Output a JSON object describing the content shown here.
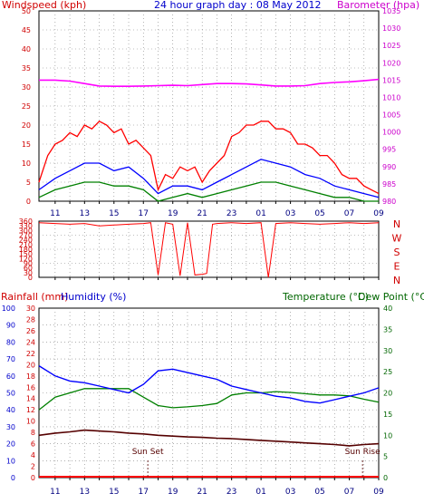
{
  "header": {
    "wind_title": "Windspeed (kph)",
    "center_title": "24 hour graph day : 08 May 2012",
    "baro_title": "Barometer (hpa)",
    "rain_title": "Rainfall (mm)",
    "hum_title": "Humidity (%)",
    "temp_title": "Temperature (°C)",
    "dew_title": "Dew Point (°C)"
  },
  "colors": {
    "wind_gust": "#ff0000",
    "wind_avg": "#0000ff",
    "wind_low": "#008000",
    "barometer": "#ff00ff",
    "wind_dir": "#ff0000",
    "humidity": "#0000ff",
    "temperature": "#008000",
    "dew_point": "#550000",
    "rain": "#ff0000",
    "axis_red": "#d00000",
    "axis_magenta": "#cc00cc",
    "axis_blue": "#0000cc",
    "axis_green": "#006600",
    "grid": "#808080"
  },
  "x_ticks": [
    "11",
    "13",
    "15",
    "17",
    "19",
    "21",
    "23",
    "01",
    "03",
    "05",
    "07",
    "09"
  ],
  "x_minor_ticks": [
    "11",
    "12",
    "13",
    "14",
    "15",
    "16",
    "17",
    "18",
    "19",
    "20",
    "21",
    "22",
    "23",
    "00",
    "01",
    "02",
    "03",
    "04",
    "05",
    "06",
    "07",
    "08",
    "09"
  ],
  "compass": [
    "N",
    "W",
    "S",
    "E",
    "N"
  ],
  "markers": {
    "sunset_label": "Sun Set",
    "sunrise_label": "Sun Rise",
    "sunset_hour": 17.3,
    "sunrise_hour": 31.9
  },
  "chart_data": [
    {
      "type": "line",
      "panel": "wind-barometer",
      "x_range_hours": [
        9.9,
        33.0
      ],
      "left_axis": {
        "label": "Windspeed (kph)",
        "range": [
          0,
          50
        ],
        "ticks": [
          0,
          5,
          10,
          15,
          20,
          25,
          30,
          35,
          40,
          45,
          50
        ]
      },
      "right_axis": {
        "label": "Barometer (hpa)",
        "range": [
          980,
          1035
        ],
        "ticks": [
          980,
          985,
          990,
          995,
          1000,
          1005,
          1010,
          1015,
          1020,
          1025,
          1030,
          1035
        ]
      },
      "series": [
        {
          "name": "Barometer (hpa)",
          "axis": "right",
          "x": [
            9.9,
            11,
            12,
            13,
            14,
            15,
            16,
            17,
            18,
            19,
            20,
            21,
            22,
            23,
            24,
            25,
            26,
            27,
            28,
            29,
            30,
            31,
            32,
            33
          ],
          "y": [
            1015.0,
            1015.0,
            1014.7,
            1014.0,
            1013.3,
            1013.2,
            1013.2,
            1013.3,
            1013.4,
            1013.5,
            1013.4,
            1013.7,
            1014.0,
            1014.0,
            1013.9,
            1013.6,
            1013.3,
            1013.3,
            1013.4,
            1014.0,
            1014.3,
            1014.5,
            1014.8,
            1015.2
          ]
        },
        {
          "name": "Wind gust (kph)",
          "axis": "left",
          "x": [
            9.9,
            10.5,
            11,
            11.5,
            12,
            12.5,
            13,
            13.5,
            14,
            14.5,
            15,
            15.5,
            16,
            16.5,
            17,
            17.5,
            18,
            18.5,
            19,
            19.5,
            20,
            20.5,
            21,
            21.5,
            22,
            22.5,
            23,
            23.5,
            24,
            24.5,
            25,
            25.5,
            26,
            26.5,
            27,
            27.5,
            28,
            28.5,
            29,
            29.5,
            30,
            30.5,
            31,
            31.5,
            32,
            32.5,
            33
          ],
          "y": [
            5,
            12,
            15,
            16,
            18,
            17,
            20,
            19,
            21,
            20,
            18,
            19,
            15,
            16,
            14,
            12,
            3,
            7,
            6,
            9,
            8,
            9,
            5,
            8,
            10,
            12,
            17,
            18,
            20,
            20,
            21,
            21,
            19,
            19,
            18,
            15,
            15,
            14,
            12,
            12,
            10,
            7,
            6,
            6,
            4,
            3,
            2
          ]
        },
        {
          "name": "Wind average (kph)",
          "axis": "left",
          "x": [
            9.9,
            11,
            12,
            13,
            14,
            15,
            16,
            17,
            18,
            19,
            20,
            21,
            22,
            23,
            24,
            25,
            26,
            27,
            28,
            29,
            30,
            31,
            32,
            33
          ],
          "y": [
            3,
            6,
            8,
            10,
            10,
            8,
            9,
            6,
            2,
            4,
            4,
            3,
            5,
            7,
            9,
            11,
            10,
            9,
            7,
            6,
            4,
            3,
            2,
            1
          ]
        },
        {
          "name": "Wind lull (kph)",
          "axis": "left",
          "x": [
            9.9,
            11,
            12,
            13,
            14,
            15,
            16,
            17,
            18,
            19,
            20,
            21,
            22,
            23,
            24,
            25,
            26,
            27,
            28,
            29,
            30,
            31,
            32,
            33
          ],
          "y": [
            1,
            3,
            4,
            5,
            5,
            4,
            4,
            3,
            0,
            1,
            2,
            1,
            2,
            3,
            4,
            5,
            5,
            4,
            3,
            2,
            1,
            1,
            0,
            0
          ]
        }
      ]
    },
    {
      "type": "line",
      "panel": "wind-direction",
      "x_range_hours": [
        9.9,
        33.0
      ],
      "left_axis": {
        "range": [
          0,
          360
        ],
        "ticks": [
          0,
          30,
          60,
          90,
          120,
          150,
          180,
          210,
          240,
          270,
          300,
          330,
          360
        ]
      },
      "series": [
        {
          "name": "Wind direction (°)",
          "axis": "left",
          "x": [
            9.9,
            11,
            12,
            13,
            14,
            15,
            16,
            17,
            17.5,
            18,
            18.5,
            19,
            19.5,
            20,
            20.5,
            21,
            21.3,
            21.7,
            22,
            23,
            24,
            25,
            25.5,
            26,
            27,
            28,
            29,
            30,
            31,
            32,
            33
          ],
          "y": [
            350,
            345,
            340,
            345,
            330,
            335,
            340,
            345,
            350,
            15,
            350,
            340,
            10,
            350,
            15,
            20,
            25,
            340,
            345,
            350,
            345,
            350,
            0,
            345,
            350,
            345,
            340,
            345,
            350,
            345,
            350
          ]
        }
      ]
    },
    {
      "type": "line",
      "panel": "humidity-temperature",
      "x_range_hours": [
        9.9,
        33.0
      ],
      "left_axis": {
        "label": "Humidity (%)",
        "range": [
          0,
          100
        ],
        "ticks": [
          0,
          10,
          20,
          30,
          40,
          50,
          60,
          70,
          80,
          90,
          100
        ]
      },
      "rain_axis": {
        "label": "Rainfall (mm)",
        "range": [
          0,
          30
        ],
        "ticks": [
          0,
          2,
          4,
          6,
          8,
          10,
          12,
          14,
          16,
          18,
          20,
          22,
          24,
          26,
          28,
          30
        ]
      },
      "right_axis": {
        "label": "Temperature (°C)",
        "range": [
          0,
          40
        ],
        "ticks": [
          0,
          5,
          10,
          15,
          20,
          25,
          30,
          35,
          40
        ]
      },
      "series": [
        {
          "name": "Humidity (%)",
          "axis": "left",
          "x": [
            9.9,
            11,
            12,
            13,
            14,
            15,
            16,
            17,
            18,
            19,
            20,
            21,
            22,
            23,
            24,
            25,
            26,
            27,
            28,
            29,
            30,
            31,
            32,
            33
          ],
          "y": [
            66,
            60,
            57,
            56,
            54,
            52,
            50,
            55,
            63,
            64,
            62,
            60,
            58,
            54,
            52,
            50,
            48,
            47,
            45,
            44,
            46,
            48,
            50,
            53
          ]
        },
        {
          "name": "Temperature (°C)",
          "axis": "right",
          "x": [
            9.9,
            11,
            12,
            13,
            14,
            15,
            16,
            17,
            18,
            19,
            20,
            21,
            22,
            23,
            24,
            25,
            26,
            27,
            28,
            29,
            30,
            31,
            32,
            33
          ],
          "y": [
            16,
            19,
            20,
            21,
            21,
            21,
            21,
            19,
            17,
            16.5,
            16.7,
            17,
            17.5,
            19.5,
            20,
            20,
            20.3,
            20.1,
            19.8,
            19.5,
            19.5,
            19.3,
            18.5,
            17.8
          ]
        },
        {
          "name": "Dew Point (°C)",
          "axis": "right",
          "x": [
            9.9,
            11,
            12,
            13,
            14,
            15,
            16,
            17,
            18,
            19,
            20,
            21,
            22,
            23,
            24,
            25,
            26,
            27,
            28,
            29,
            30,
            31,
            32,
            33
          ],
          "y": [
            10,
            10.5,
            10.8,
            11.2,
            11,
            10.8,
            10.5,
            10.3,
            10,
            9.8,
            9.6,
            9.5,
            9.3,
            9.2,
            9,
            8.8,
            8.6,
            8.4,
            8.2,
            8,
            7.8,
            7.5,
            7.8,
            8
          ]
        },
        {
          "name": "Rainfall (mm)",
          "axis": "rain",
          "x": [
            9.9,
            33
          ],
          "y": [
            0,
            0
          ]
        }
      ]
    }
  ]
}
